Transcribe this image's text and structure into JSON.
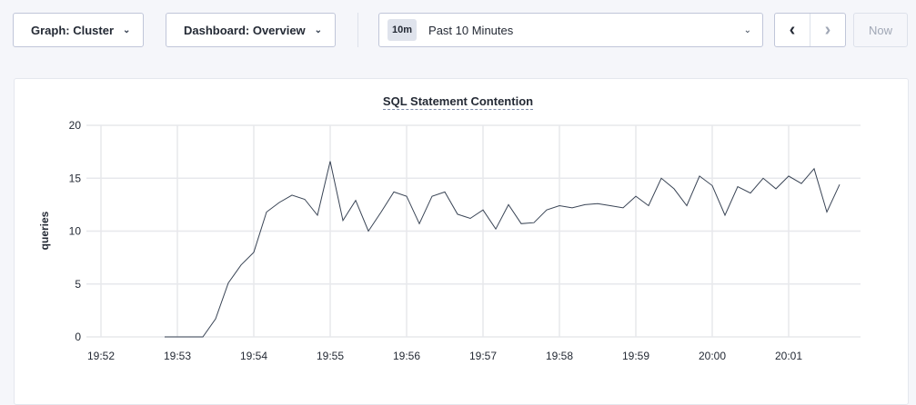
{
  "toolbar": {
    "graph_label": "Graph: Cluster",
    "dashboard_label": "Dashboard: Overview",
    "range_badge": "10m",
    "range_label": "Past 10 Minutes",
    "prev_icon": "chevron-left-icon",
    "next_icon": "chevron-right-icon",
    "now_label": "Now"
  },
  "chart_data": {
    "type": "line",
    "title": "SQL Statement Contention",
    "xlabel": "",
    "ylabel": "queries",
    "ylim": [
      0,
      20
    ],
    "yticks": [
      "0",
      "5",
      "10",
      "15",
      "20"
    ],
    "xticks": [
      "19:52",
      "19:53",
      "19:54",
      "19:55",
      "19:56",
      "19:57",
      "19:58",
      "19:59",
      "20:00",
      "20:01"
    ],
    "grid": true,
    "line_color": "#394455",
    "series": [
      {
        "x": [
          "19:52:50",
          "19:53:00",
          "19:53:10",
          "19:53:20",
          "19:53:30",
          "19:53:40",
          "19:53:50",
          "19:54:00",
          "19:54:10",
          "19:54:20",
          "19:54:30",
          "19:54:40",
          "19:54:50",
          "19:55:00",
          "19:55:10",
          "19:55:20",
          "19:55:30",
          "19:55:40",
          "19:55:50",
          "19:56:00",
          "19:56:10",
          "19:56:20",
          "19:56:30",
          "19:56:40",
          "19:56:50",
          "19:57:00",
          "19:57:10",
          "19:57:20",
          "19:57:30",
          "19:57:40",
          "19:57:50",
          "19:58:00",
          "19:58:10",
          "19:58:20",
          "19:58:30",
          "19:58:40",
          "19:58:50",
          "19:59:00",
          "19:59:10",
          "19:59:20",
          "19:59:30",
          "19:59:40",
          "19:59:50",
          "20:00:00",
          "20:00:10",
          "20:00:20",
          "20:00:30",
          "20:00:40",
          "20:00:50",
          "20:01:00",
          "20:01:10",
          "20:01:20",
          "20:01:30",
          "20:01:40"
        ],
        "values": [
          0,
          0,
          0,
          0,
          1.7,
          5.1,
          6.8,
          8.0,
          11.8,
          12.7,
          13.4,
          13.0,
          11.5,
          16.6,
          11.0,
          12.9,
          10.0,
          11.8,
          13.7,
          13.3,
          10.7,
          13.3,
          13.7,
          11.6,
          11.2,
          12.0,
          10.2,
          12.5,
          10.7,
          10.8,
          12.0,
          12.4,
          12.2,
          12.5,
          12.6,
          12.4,
          12.2,
          13.3,
          12.4,
          15.0,
          14.0,
          12.4,
          15.2,
          14.3,
          11.5,
          14.2,
          13.6,
          15.0,
          14.0,
          15.2,
          14.5,
          15.9,
          11.8,
          14.4
        ]
      }
    ]
  }
}
